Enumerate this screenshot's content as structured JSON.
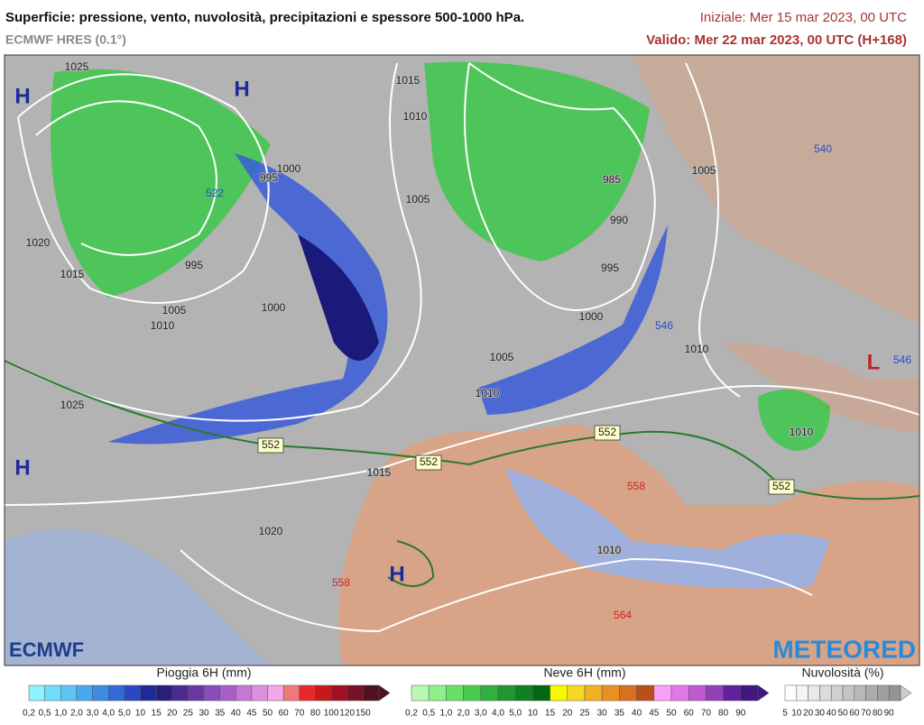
{
  "header": {
    "title": "Superficie: pressione, vento, nuvolosità, precipitazioni e spessore 500-1000 hPa.",
    "model": "ECMWF HRES (0.1°)",
    "init": "Iniziale: Mer 15 mar 2023, 00 UTC",
    "valid": "Valido: Mer 22 mar 2023, 00 UTC (H+168)"
  },
  "map": {
    "pressure_centers": [
      "H",
      "H",
      "H",
      "H",
      "L"
    ],
    "isobar_labels": [
      "1025",
      "1015",
      "1010",
      "1000",
      "995",
      "995",
      "1005",
      "1000",
      "1010",
      "1020",
      "1015",
      "1005",
      "985",
      "990",
      "995",
      "1000",
      "1005",
      "1010",
      "1005",
      "1010",
      "1015",
      "1020",
      "1025",
      "1010",
      "1010"
    ],
    "thickness_labels": [
      "522",
      "540",
      "552",
      "552",
      "552",
      "552",
      "558",
      "558",
      "564",
      "546",
      "546"
    ]
  },
  "logos": {
    "left": "ECMWF",
    "right": "METEORED"
  },
  "legends": [
    {
      "title": "Pioggia 6H (mm)",
      "labels": [
        "0,2",
        "0,5",
        "1,0",
        "2,0",
        "3,0",
        "4,0",
        "5,0",
        "10",
        "15",
        "20",
        "25",
        "30",
        "35",
        "40",
        "45",
        "50",
        "60",
        "70",
        "80",
        "100",
        "120",
        "150"
      ],
      "colors": [
        "#8ff0ff",
        "#6fdcfa",
        "#5cc4f5",
        "#4aa8ee",
        "#3d8be3",
        "#3369d6",
        "#2a48c4",
        "#1e2a9c",
        "#2b1e7a",
        "#4a2a8e",
        "#6a38a4",
        "#8a4cb8",
        "#a860c8",
        "#c478d6",
        "#dc90e0",
        "#f0a8e8",
        "#f07878",
        "#e82828",
        "#c81818",
        "#a01020",
        "#781028",
        "#501020"
      ]
    },
    {
      "title": "Neve 6H (mm)",
      "labels": [
        "0,2",
        "0,5",
        "1,0",
        "2,0",
        "3,0",
        "4,0",
        "5,0",
        "10",
        "15",
        "20",
        "25",
        "30",
        "35",
        "40",
        "45",
        "50",
        "60",
        "70",
        "80",
        "90"
      ],
      "colors": [
        "#b8f8b0",
        "#90f088",
        "#68e068",
        "#48cc50",
        "#30b040",
        "#209830",
        "#108020",
        "#006810",
        "#f8f800",
        "#f8d820",
        "#f0b020",
        "#e89020",
        "#d87020",
        "#b85018",
        "#f8a0f8",
        "#e078e8",
        "#c058d0",
        "#9040b8",
        "#6020a0",
        "#401880"
      ]
    },
    {
      "title": "Nuvolosità (%)",
      "labels": [
        "5",
        "10",
        "20",
        "30",
        "40",
        "50",
        "60",
        "70",
        "80",
        "90"
      ],
      "colors": [
        "#ffffff",
        "#f4f4f4",
        "#e8e8e8",
        "#dcdcdc",
        "#d0d0d0",
        "#c4c4c4",
        "#b8b8b8",
        "#acacac",
        "#a0a0a0",
        "#949494"
      ]
    }
  ]
}
